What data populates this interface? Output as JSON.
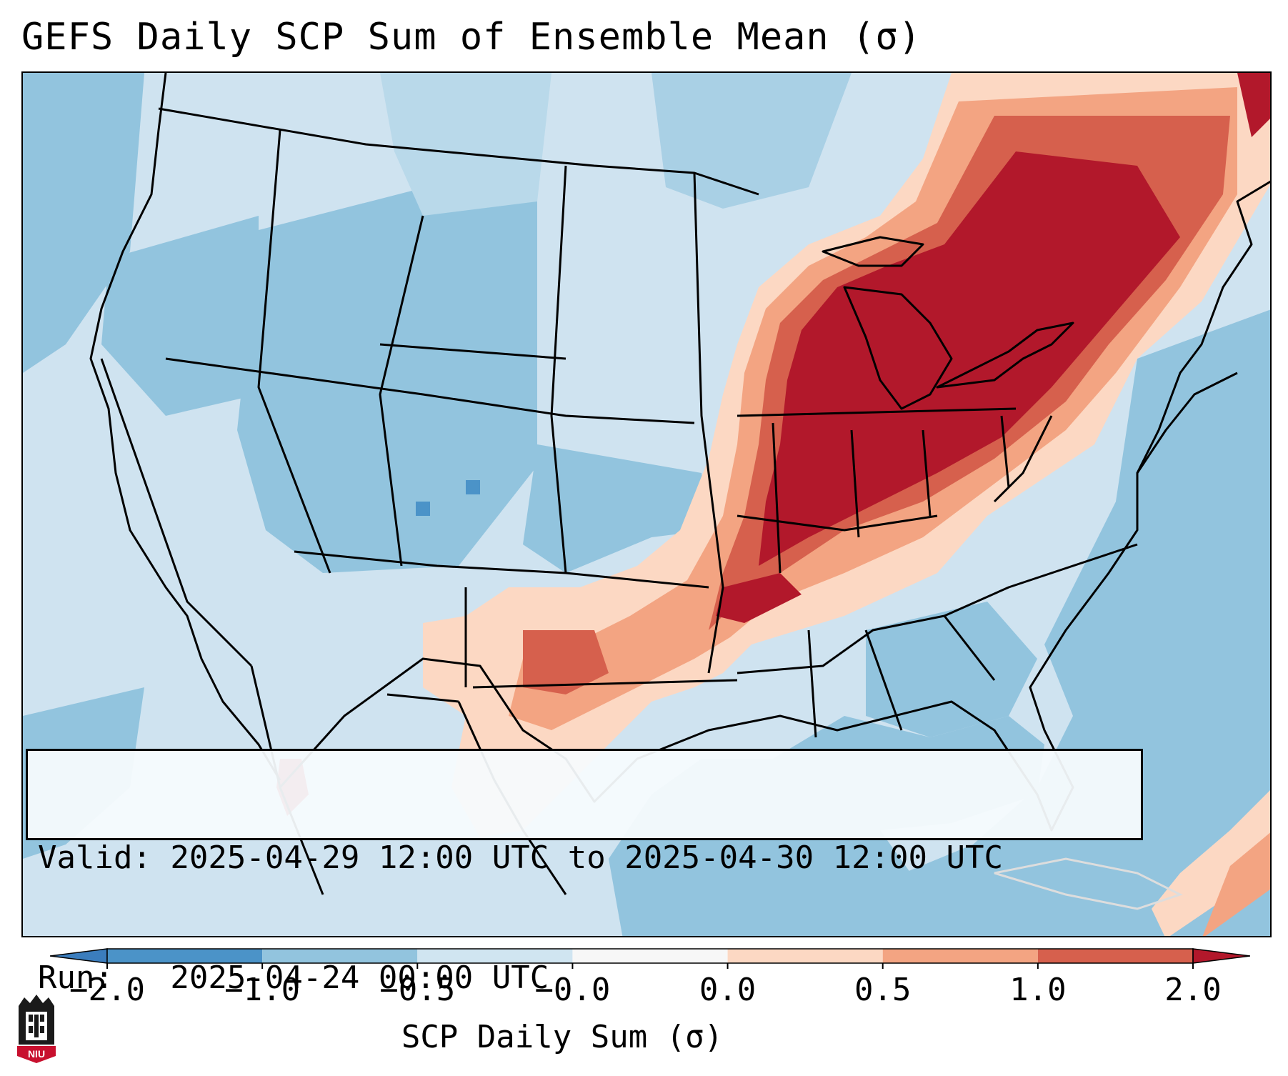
{
  "title": "GEFS Daily SCP Sum of Ensemble Mean (σ)",
  "info": {
    "valid_line": "Valid: 2025-04-29 12:00 UTC to 2025-04-30 12:00 UTC",
    "run_line": "Run:   2025-04-24 00:00 UTC"
  },
  "colorbar": {
    "label": "SCP Daily Sum (σ)",
    "ticks": [
      "−2.0",
      "−1.0",
      "−0.5",
      "−0.0",
      "0.0",
      "0.5",
      "1.0",
      "2.0"
    ],
    "bins": [
      {
        "range": "< −2.0",
        "color": "#3b7dbd"
      },
      {
        "range": "−2.0 to −1.0",
        "color": "#4b93c8"
      },
      {
        "range": "−1.0 to −0.5",
        "color": "#92c4de"
      },
      {
        "range": "−0.5 to −0.0",
        "color": "#d0e5f1"
      },
      {
        "range": "−0.0 to 0.0",
        "color": "#f7f7f7"
      },
      {
        "range": "0.0 to 0.5",
        "color": "#fcd8c3"
      },
      {
        "range": "0.5 to 1.0",
        "color": "#f3a482"
      },
      {
        "range": "1.0 to 2.0",
        "color": "#d6604d"
      },
      {
        "range": "> 2.0",
        "color": "#b2182b"
      }
    ]
  },
  "map": {
    "region": "Contiguous United States",
    "max_anomaly_region": "Great Lakes, Ohio Valley, Northeast",
    "positive_anomaly_axis": "Southern Plains to Ohio Valley and Northeast",
    "negative_anomaly_region": "West, Northern Plains, Southeast, Gulf of Mexico"
  },
  "logo": {
    "text": "NIU",
    "accent_color": "#c8102e"
  }
}
